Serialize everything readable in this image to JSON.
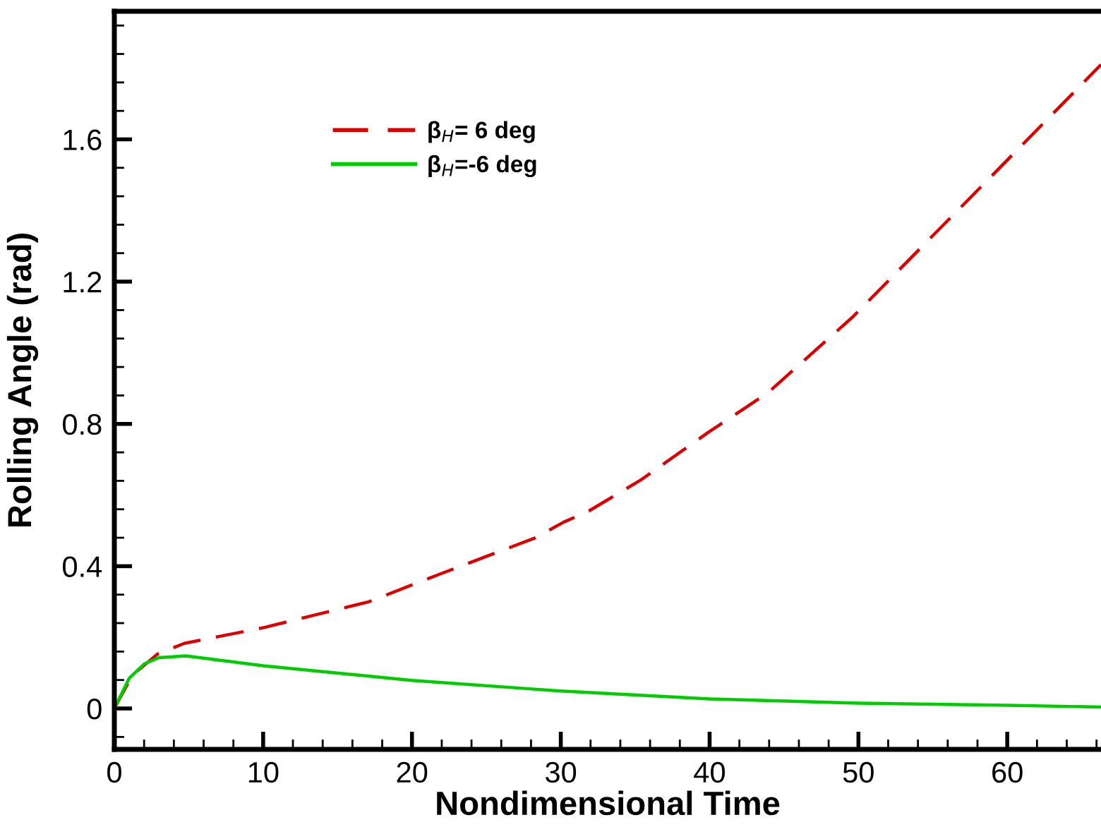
{
  "chart_data": {
    "type": "line",
    "xlabel": "Nondimensional Time",
    "ylabel": "Rolling Angle (rad)",
    "xlim": [
      0,
      66.3
    ],
    "ylim": [
      -0.115,
      1.96
    ],
    "xticks": [
      0,
      10,
      20,
      30,
      40,
      50,
      60
    ],
    "yticks": [
      {
        "value": 0,
        "label": "0"
      },
      0.4,
      0.8,
      1.2,
      1.6
    ],
    "grid": false,
    "legend": "top left",
    "series": [
      {
        "name": "β$_{H}$= 6 deg",
        "color": "#dd0000",
        "line_style": "dashed",
        "x": [
          0,
          1.2,
          2.9,
          4.7,
          10,
          17.1,
          21.7,
          28.3,
          30.2,
          31.8,
          35.4,
          39.9,
          43.9,
          49.6,
          60.2,
          66.3
        ],
        "values": [
          0,
          0.093,
          0.153,
          0.183,
          0.227,
          0.3,
          0.375,
          0.48,
          0.524,
          0.553,
          0.643,
          0.776,
          0.887,
          1.1,
          1.55,
          1.81
        ]
      },
      {
        "name": "β$_{H}$=-6 deg",
        "color": "#00cc00",
        "line_style": "solid",
        "x": [
          0,
          1,
          2,
          3,
          4.8,
          10,
          20,
          30,
          40,
          50,
          60,
          66.3
        ],
        "values": [
          0,
          0.085,
          0.125,
          0.143,
          0.148,
          0.12,
          0.079,
          0.049,
          0.027,
          0.015,
          0.009,
          0.004
        ]
      }
    ]
  }
}
